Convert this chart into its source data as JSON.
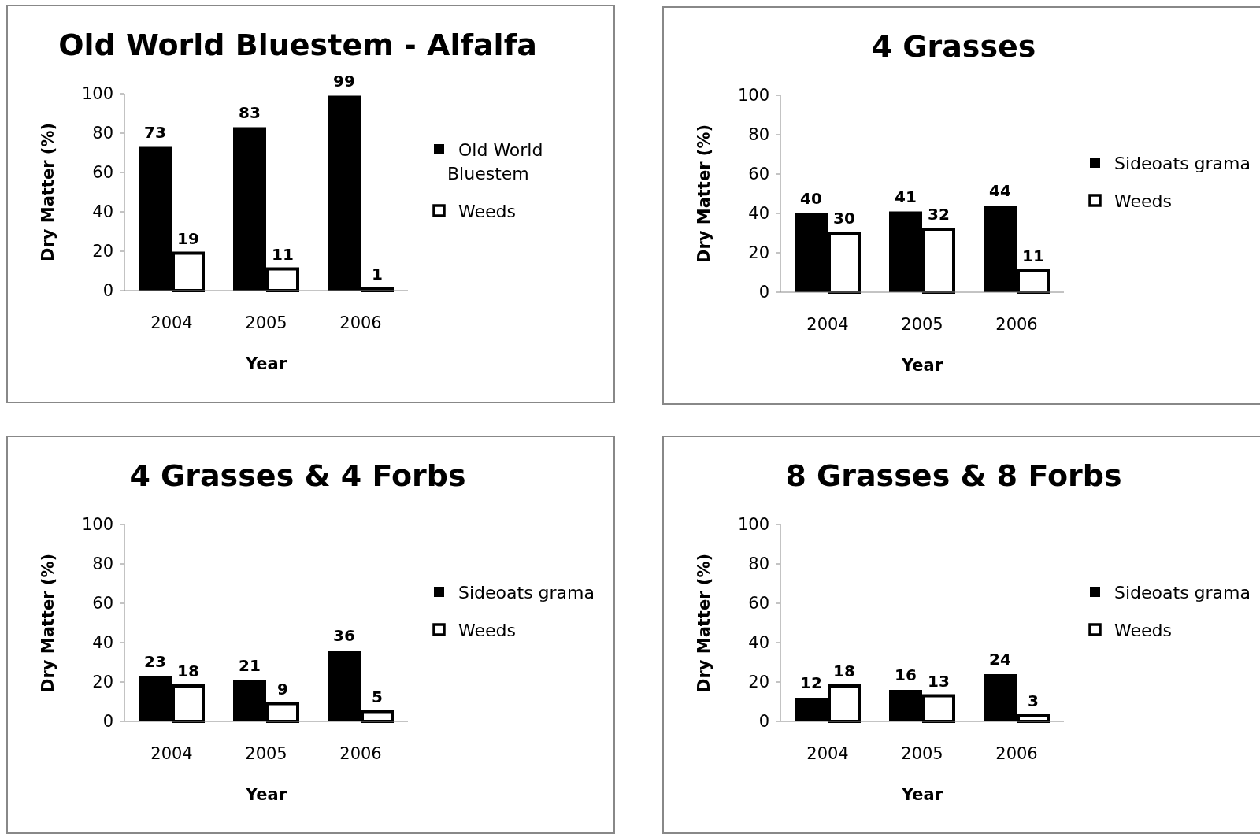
{
  "chart_data": [
    {
      "type": "bar",
      "title": "Old World Bluestem - Alfalfa",
      "categories": [
        "2004",
        "2005",
        "2006"
      ],
      "xlabel": "Year",
      "ylabel": "Dry Matter (%)",
      "ylim": [
        0,
        100
      ],
      "yticks": [
        0,
        20,
        40,
        60,
        80,
        100
      ],
      "data_labels": true,
      "legend": "right",
      "series": [
        {
          "name": "Old World Bluestem",
          "color": "#000000",
          "values": [
            73,
            83,
            99
          ]
        },
        {
          "name": "Weeds",
          "color": "#ffffff",
          "values": [
            19,
            11,
            1
          ]
        }
      ]
    },
    {
      "type": "bar",
      "title": "4 Grasses",
      "categories": [
        "2004",
        "2005",
        "2006"
      ],
      "xlabel": "Year",
      "ylabel": "Dry Matter (%)",
      "ylim": [
        0,
        100
      ],
      "yticks": [
        0,
        20,
        40,
        60,
        80,
        100
      ],
      "data_labels": true,
      "legend": "right",
      "series": [
        {
          "name": "Sideoats grama",
          "color": "#000000",
          "values": [
            40,
            41,
            44
          ]
        },
        {
          "name": "Weeds",
          "color": "#ffffff",
          "values": [
            30,
            32,
            11
          ]
        }
      ]
    },
    {
      "type": "bar",
      "title": "4 Grasses & 4 Forbs",
      "categories": [
        "2004",
        "2005",
        "2006"
      ],
      "xlabel": "Year",
      "ylabel": "Dry Matter (%)",
      "ylim": [
        0,
        100
      ],
      "yticks": [
        0,
        20,
        40,
        60,
        80,
        100
      ],
      "data_labels": true,
      "legend": "right",
      "series": [
        {
          "name": "Sideoats grama",
          "color": "#000000",
          "values": [
            23,
            21,
            36
          ]
        },
        {
          "name": "Weeds",
          "color": "#ffffff",
          "values": [
            18,
            9,
            5
          ]
        }
      ]
    },
    {
      "type": "bar",
      "title": "8 Grasses & 8 Forbs",
      "categories": [
        "2004",
        "2005",
        "2006"
      ],
      "xlabel": "Year",
      "ylabel": "Dry Matter (%)",
      "ylim": [
        0,
        100
      ],
      "yticks": [
        0,
        20,
        40,
        60,
        80,
        100
      ],
      "data_labels": true,
      "legend": "right",
      "series": [
        {
          "name": "Sideoats grama",
          "color": "#000000",
          "values": [
            12,
            16,
            24
          ]
        },
        {
          "name": "Weeds",
          "color": "#ffffff",
          "values": [
            18,
            13,
            3
          ]
        }
      ]
    }
  ]
}
